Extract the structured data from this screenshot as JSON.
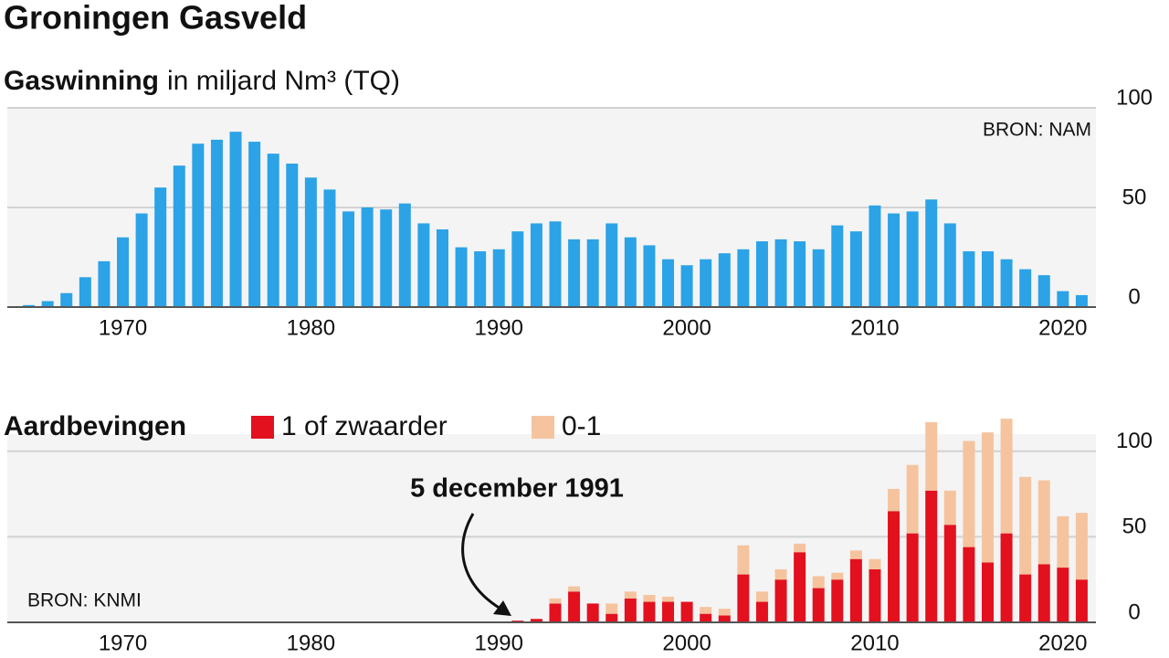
{
  "title": "Groningen Gasveld",
  "chart_data": [
    {
      "type": "bar",
      "title": "Gaswinning",
      "unit": "in miljard Nm³ (TQ)",
      "source": "BRON: NAM",
      "x": [
        1965,
        1966,
        1967,
        1968,
        1969,
        1970,
        1971,
        1972,
        1973,
        1974,
        1975,
        1976,
        1977,
        1978,
        1979,
        1980,
        1981,
        1982,
        1983,
        1984,
        1985,
        1986,
        1987,
        1988,
        1989,
        1990,
        1991,
        1992,
        1993,
        1994,
        1995,
        1996,
        1997,
        1998,
        1999,
        2000,
        2001,
        2002,
        2003,
        2004,
        2005,
        2006,
        2007,
        2008,
        2009,
        2010,
        2011,
        2012,
        2013,
        2014,
        2015,
        2016,
        2017,
        2018,
        2019,
        2020,
        2021
      ],
      "values": [
        1,
        3,
        7,
        15,
        23,
        35,
        47,
        60,
        71,
        82,
        84,
        88,
        83,
        77,
        72,
        65,
        59,
        48,
        50,
        49,
        52,
        42,
        39,
        30,
        28,
        29,
        38,
        42,
        43,
        34,
        34,
        42,
        35,
        31,
        24,
        21,
        24,
        27,
        29,
        33,
        34,
        33,
        29,
        41,
        38,
        51,
        47,
        48,
        54,
        42,
        28,
        28,
        24,
        19,
        16,
        8,
        6
      ],
      "color": "#2ba3e6",
      "xlim": [
        1964,
        2022
      ],
      "xticks": [
        1970,
        1980,
        1990,
        2000,
        2010,
        2020
      ],
      "ylim": [
        0,
        100
      ],
      "yticks": [
        0,
        50,
        100
      ],
      "grid": true
    },
    {
      "type": "bar",
      "stacked": true,
      "title": "Aardbevingen",
      "source": "BRON: KNMI",
      "annotation": "5 december 1991",
      "x": [
        1991,
        1992,
        1993,
        1994,
        1995,
        1996,
        1997,
        1998,
        1999,
        2000,
        2001,
        2002,
        2003,
        2004,
        2005,
        2006,
        2007,
        2008,
        2009,
        2010,
        2011,
        2012,
        2013,
        2014,
        2015,
        2016,
        2017,
        2018,
        2019,
        2020,
        2021
      ],
      "series": [
        {
          "name": "1 of zwaarder",
          "color": "#e3101e",
          "values": [
            1,
            2,
            11,
            18,
            11,
            5,
            14,
            12,
            12,
            12,
            5,
            4,
            28,
            12,
            25,
            41,
            20,
            25,
            37,
            31,
            65,
            52,
            77,
            57,
            44,
            35,
            52,
            28,
            34,
            32,
            25
          ]
        },
        {
          "name": "0-1",
          "color": "#f5c49f",
          "values": [
            0,
            0,
            3,
            3,
            0,
            6,
            4,
            4,
            3,
            0,
            4,
            4,
            17,
            6,
            6,
            5,
            7,
            4,
            5,
            6,
            13,
            40,
            40,
            20,
            62,
            76,
            67,
            57,
            49,
            30,
            39
          ]
        }
      ],
      "xlim": [
        1964,
        2022
      ],
      "xticks": [
        1970,
        1980,
        1990,
        2000,
        2010,
        2020
      ],
      "ylim": [
        0,
        110
      ],
      "yticks": [
        0,
        50,
        100
      ],
      "grid": true
    }
  ]
}
